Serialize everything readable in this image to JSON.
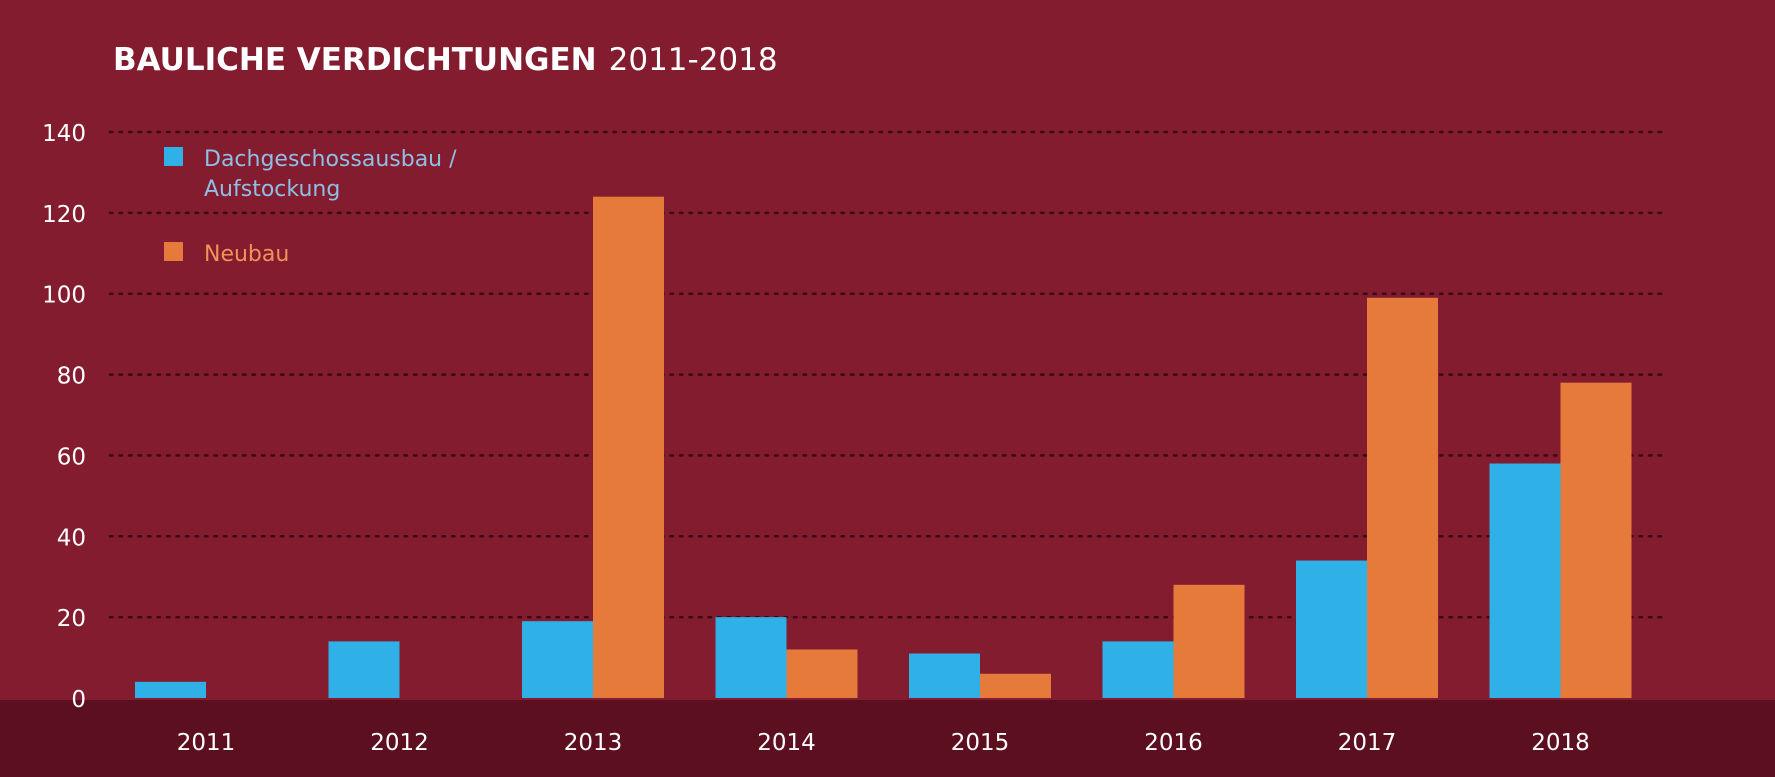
{
  "chart_data": {
    "type": "bar",
    "title_bold": "BAULICHE VERDICHTUNGEN",
    "title_rest": "2011-2018",
    "categories": [
      "2011",
      "2012",
      "2013",
      "2014",
      "2015",
      "2016",
      "2017",
      "2018"
    ],
    "series": [
      {
        "name_line1": "Dachgeschossausbau /",
        "name_line2": "Aufstockung",
        "color": "#2fb0e6",
        "legend_text_color": "#8fbfe6",
        "values": [
          4,
          14,
          19,
          20,
          11,
          14,
          34,
          58
        ]
      },
      {
        "name_line1": "Neubau",
        "color": "#e57a3a",
        "legend_text_color": "#f0935a",
        "values": [
          0,
          0,
          124,
          12,
          6,
          28,
          99,
          78
        ]
      }
    ],
    "ylim": [
      0,
      140
    ],
    "yticks": [
      "0",
      "20",
      "40",
      "60",
      "80",
      "100",
      "120",
      "140"
    ],
    "grid": true,
    "legend_position": "top-left",
    "background_color": "#831c2f",
    "axis_band_color": "#5c0f1e",
    "grid_color": "#3a0a14"
  }
}
